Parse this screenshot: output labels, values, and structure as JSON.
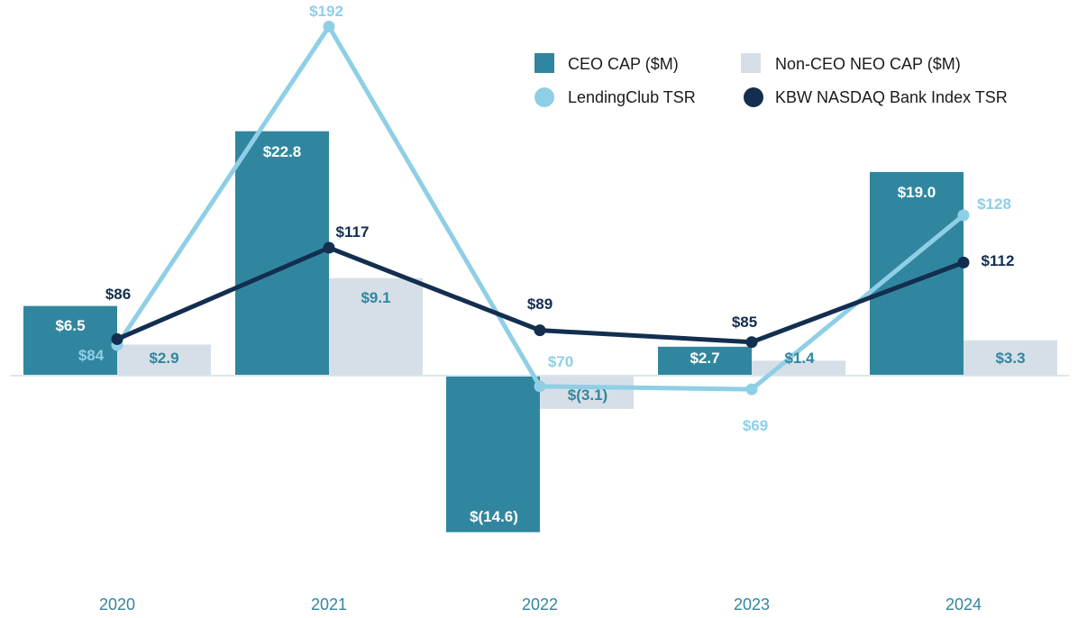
{
  "chart_data": {
    "type": "bar",
    "categories": [
      "2020",
      "2021",
      "2022",
      "2023",
      "2024"
    ],
    "series": [
      {
        "name": "CEO CAP ($M)",
        "kind": "bar",
        "color": "#31869f",
        "values": [
          6.5,
          22.8,
          -14.6,
          2.7,
          19.0
        ],
        "labels": [
          "$6.5",
          "$22.8",
          "$(14.6)",
          "$2.7",
          "$19.0"
        ]
      },
      {
        "name": "Non-CEO NEO CAP ($M)",
        "kind": "bar",
        "color": "#d6dfe7",
        "values": [
          2.9,
          9.1,
          -3.1,
          1.4,
          3.3
        ],
        "labels": [
          "$2.9",
          "$9.1",
          "$(3.1)",
          "$1.4",
          "$3.3"
        ]
      },
      {
        "name": "LendingClub TSR",
        "kind": "line",
        "color": "#8fcfe6",
        "values": [
          84,
          192,
          70,
          69,
          128
        ],
        "labels": [
          "$84",
          "$192",
          "$70",
          "$69",
          "$128"
        ]
      },
      {
        "name": "KBW NASDAQ Bank Index TSR",
        "kind": "line",
        "color": "#132e4f",
        "values": [
          86,
          117,
          89,
          85,
          112
        ],
        "labels": [
          "$86",
          "$117",
          "$89",
          "$85",
          "$112"
        ]
      }
    ],
    "ylim_bars": [
      -22.5,
      35.5
    ],
    "ylim_lines": [
      75,
      195
    ],
    "legend_position": "top-right",
    "title": "",
    "xlabel": "",
    "ylabel": ""
  }
}
